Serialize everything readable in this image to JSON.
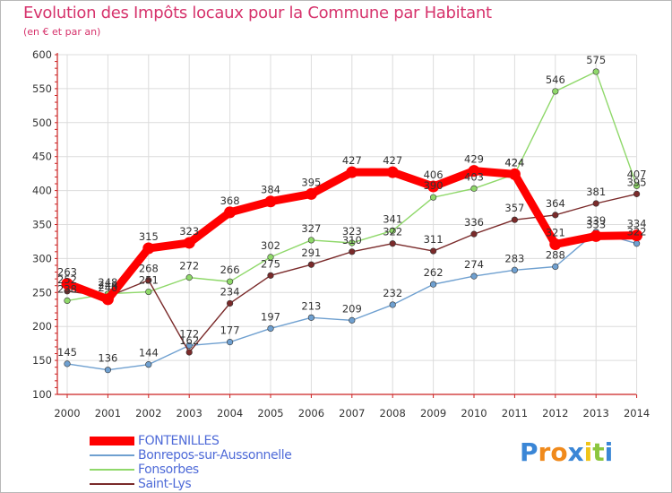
{
  "header": {
    "title": "Evolution des Impôts locaux pour la Commune par Habitant",
    "subtitle": "(en € et par an)"
  },
  "colors": {
    "title": "#d6336c",
    "axis": "#cc2222",
    "grid": "#dcdcdc",
    "legend_text": "#4f6bd8"
  },
  "chart_data": {
    "type": "line",
    "title": "Evolution des Impôts locaux pour la Commune par Habitant",
    "subtitle": "(en € et par an)",
    "xlabel": "",
    "ylabel": "",
    "ylim": [
      100,
      600
    ],
    "yticks": [
      100,
      150,
      200,
      250,
      300,
      350,
      400,
      450,
      500,
      550,
      600
    ],
    "x": [
      "2000",
      "2001",
      "2002",
      "2003",
      "2004",
      "2005",
      "2006",
      "2007",
      "2008",
      "2009",
      "2010",
      "2011",
      "2012",
      "2013",
      "2014"
    ],
    "grid": true,
    "legend_position": "bottom-left",
    "series": [
      {
        "name": "FONTENILLES",
        "color": "#ff0000",
        "values": [
          263,
          240,
          315,
          323,
          368,
          384,
          395,
          427,
          427,
          406,
          429,
          424,
          321,
          333,
          334
        ]
      },
      {
        "name": "Bonrepos-sur-Aussonnelle",
        "color": "#6fa0d0",
        "values": [
          145,
          136,
          144,
          172,
          177,
          197,
          213,
          209,
          232,
          262,
          274,
          283,
          288,
          339,
          322
        ]
      },
      {
        "name": "Fonsorbes",
        "color": "#8fd86a",
        "values": [
          238,
          248,
          251,
          272,
          266,
          302,
          327,
          323,
          341,
          390,
          403,
          424,
          546,
          575,
          407
        ]
      },
      {
        "name": "Saint-Lys",
        "color": "#7a2a2a",
        "values": [
          252,
          244,
          268,
          162,
          234,
          275,
          291,
          310,
          322,
          311,
          336,
          357,
          364,
          381,
          395
        ]
      }
    ]
  },
  "logo": {
    "letters": [
      "P",
      "r",
      "o",
      "x",
      "i",
      "t",
      "i"
    ],
    "colors": [
      "#3a86d6",
      "#f08a1c",
      "#f08a1c",
      "#3a86d6",
      "#f0c419",
      "#8cc63f",
      "#3a86d6"
    ]
  }
}
